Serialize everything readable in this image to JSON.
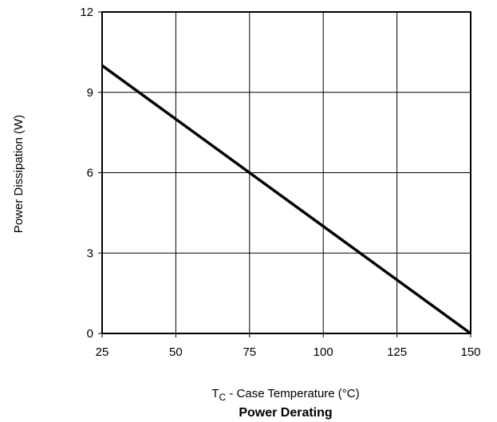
{
  "chart_data": {
    "type": "line",
    "title": "Power Derating",
    "xlabel": {
      "main": "T",
      "subscript": "C",
      "rest": " - Case Temperature (°C)"
    },
    "ylabel": "Power Dissipation (W)",
    "xlim": [
      25,
      150
    ],
    "ylim": [
      0,
      12
    ],
    "xticks": [
      25,
      50,
      75,
      100,
      125,
      150
    ],
    "yticks": [
      0,
      3,
      6,
      9,
      12
    ],
    "grid": true,
    "series": [
      {
        "x": [
          25,
          150
        ],
        "y": [
          10,
          0
        ],
        "color": "#000000"
      }
    ]
  }
}
